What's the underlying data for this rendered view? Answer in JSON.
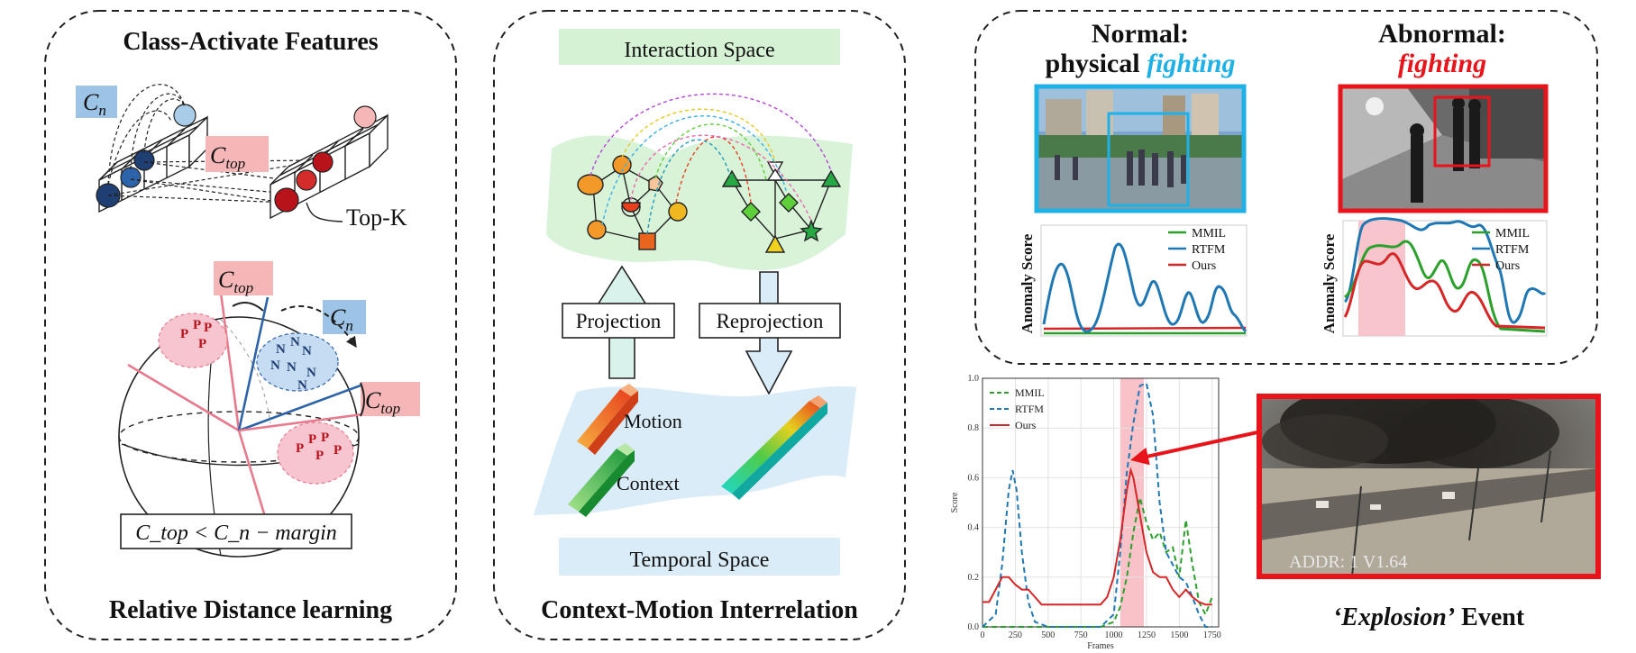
{
  "panel_left": {
    "title": "Class-Activate Features",
    "footer": "Relative Distance learning",
    "label_cn": "C",
    "label_cn_sub": "n",
    "label_ctop": "C",
    "label_ctop_sub": "top",
    "topk_label": "Top-K",
    "node_p": "P",
    "node_n": "N",
    "formula": "C_top < C_n − margin",
    "colors": {
      "cn_box": "#9dc3e6",
      "ctop_box": "#f4b6b6",
      "blue": "#1f3f73",
      "red": "#b8121b"
    }
  },
  "panel_mid": {
    "title_top": "Interaction Space",
    "title_bottom": "Temporal Space",
    "footer": "Context-Motion Interrelation",
    "projection": "Projection",
    "reprojection": "Reprojection",
    "motion": "Motion",
    "context": "Context",
    "colors": {
      "top_band": "#d5f2d5",
      "bottom_band": "#d9ecf8"
    }
  },
  "panel_right_top": {
    "normal_title_line1": "Normal:",
    "normal_title_line2a": "physical",
    "normal_title_line2b": "fighting",
    "abnormal_title_line1": "Abnormal:",
    "abnormal_title_line2": "fighting",
    "ylabel": "Anomaly Score",
    "legend": [
      "MMIL",
      "RTFM",
      "Ours"
    ],
    "colors": {
      "normal_accent": "#1fb0e6",
      "abnormal_accent": "#e8141b",
      "mmil": "#2ca02c",
      "rtfm": "#1f77b4",
      "ours": "#d62728"
    }
  },
  "panel_right_bottom": {
    "event_label_a": "‘Explosion’",
    "event_label_b": " Event",
    "video_overlay": "ADDR:  1    V1.64"
  },
  "chart_data": {
    "type": "line",
    "xlabel": "Frames",
    "ylabel": "Score",
    "xlim": [
      0,
      1800
    ],
    "ylim": [
      0,
      1.0
    ],
    "xticks": [
      "0",
      "250",
      "500",
      "750",
      "1000",
      "1250",
      "1500",
      "1750"
    ],
    "yticks": [
      "0.0",
      "0.2",
      "0.4",
      "0.6",
      "0.8",
      "1.0"
    ],
    "grid": true,
    "legend_position": "top-left",
    "highlight_range": [
      1050,
      1230
    ],
    "series": [
      {
        "name": "MMIL",
        "style": "dashed",
        "color": "#2ca02c",
        "x": [
          0,
          900,
          1000,
          1050,
          1100,
          1150,
          1200,
          1250,
          1300,
          1350,
          1400,
          1450,
          1500,
          1550,
          1600,
          1650,
          1700,
          1750
        ],
        "y": [
          0.0,
          0.0,
          0.02,
          0.08,
          0.2,
          0.38,
          0.52,
          0.42,
          0.35,
          0.38,
          0.3,
          0.32,
          0.2,
          0.43,
          0.25,
          0.1,
          0.05,
          0.12
        ]
      },
      {
        "name": "RTFM",
        "style": "dashed",
        "color": "#1f77b4",
        "x": [
          0,
          100,
          150,
          200,
          230,
          260,
          300,
          350,
          400,
          500,
          900,
          1000,
          1050,
          1100,
          1150,
          1200,
          1250,
          1300,
          1350,
          1400,
          1450,
          1500,
          1550,
          1600,
          1650,
          1700,
          1750
        ],
        "y": [
          0.0,
          0.05,
          0.25,
          0.55,
          0.63,
          0.55,
          0.3,
          0.1,
          0.02,
          0.0,
          0.0,
          0.05,
          0.3,
          0.62,
          0.82,
          0.97,
          0.98,
          0.85,
          0.5,
          0.3,
          0.25,
          0.2,
          0.18,
          0.12,
          0.05,
          0.0,
          0.0
        ]
      },
      {
        "name": "Ours",
        "style": "solid",
        "color": "#d62728",
        "x": [
          0,
          50,
          100,
          150,
          200,
          250,
          300,
          350,
          400,
          450,
          500,
          600,
          800,
          900,
          950,
          1000,
          1050,
          1100,
          1130,
          1150,
          1200,
          1250,
          1300,
          1350,
          1400,
          1450,
          1500,
          1550,
          1600,
          1650,
          1700,
          1750
        ],
        "y": [
          0.1,
          0.1,
          0.15,
          0.2,
          0.2,
          0.17,
          0.15,
          0.15,
          0.12,
          0.09,
          0.09,
          0.09,
          0.09,
          0.09,
          0.12,
          0.2,
          0.35,
          0.55,
          0.63,
          0.6,
          0.45,
          0.3,
          0.22,
          0.2,
          0.2,
          0.15,
          0.12,
          0.15,
          0.12,
          0.1,
          0.09,
          0.09
        ]
      }
    ]
  }
}
